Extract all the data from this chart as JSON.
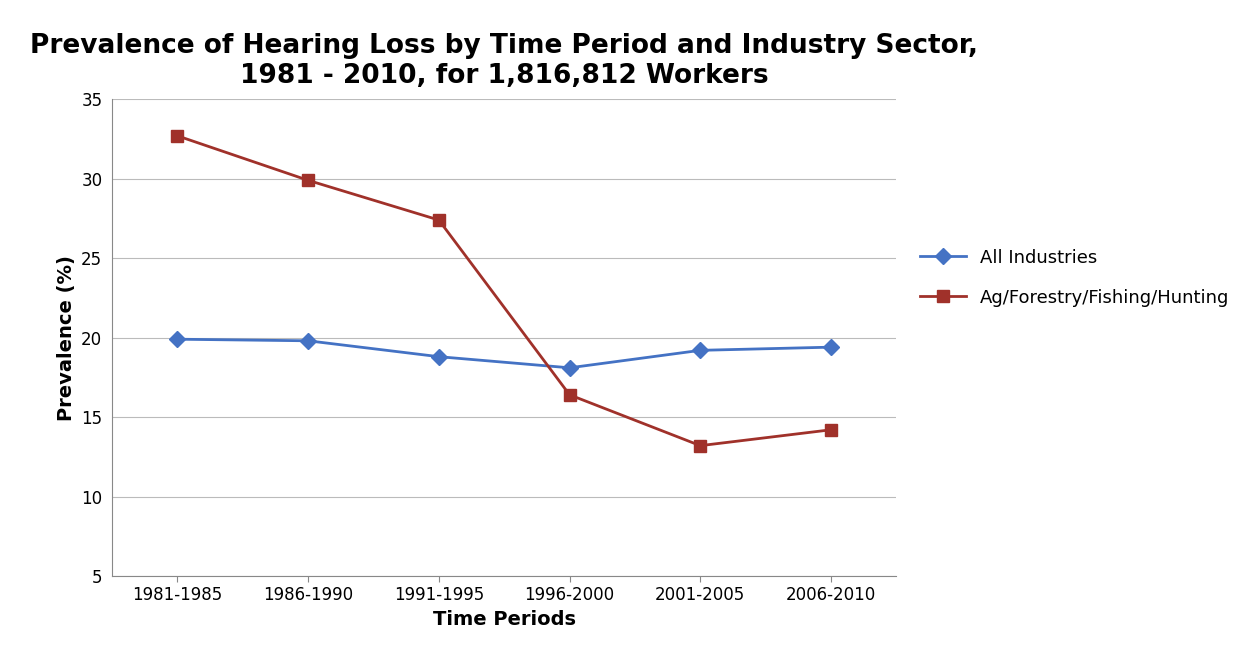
{
  "title": "Prevalence of Hearing Loss by Time Period and Industry Sector,\n1981 - 2010, for 1,816,812 Workers",
  "xlabel": "Time Periods",
  "ylabel": "Prevalence (%)",
  "x_labels": [
    "1981-1985",
    "1986-1990",
    "1991-1995",
    "1996-2000",
    "2001-2005",
    "2006-2010"
  ],
  "all_industries": [
    19.9,
    19.8,
    18.8,
    18.1,
    19.2,
    19.4
  ],
  "ag_forestry": [
    32.7,
    29.9,
    27.4,
    16.4,
    13.2,
    14.2
  ],
  "all_industries_color": "#4472C4",
  "ag_forestry_color": "#A0312A",
  "ylim_min": 5,
  "ylim_max": 35,
  "yticks": [
    5,
    10,
    15,
    20,
    25,
    30,
    35
  ],
  "legend_labels": [
    "All Industries",
    "Ag/Forestry/Fishing/Hunting"
  ],
  "title_fontsize": 19,
  "axis_label_fontsize": 14,
  "tick_fontsize": 12,
  "legend_fontsize": 13,
  "line_width": 2.0,
  "marker_size": 8,
  "bg_color": "#FFFFFF",
  "grid_color": "#BBBBBB"
}
